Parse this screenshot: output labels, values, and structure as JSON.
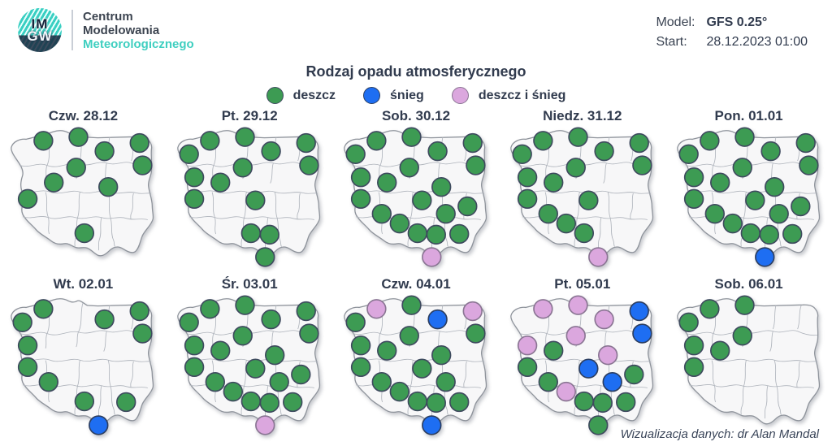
{
  "header": {
    "logo": {
      "im": "IM",
      "gw": "GW",
      "line1": "Centrum",
      "line2": "Modelowania",
      "line3": "Meteorologicznego"
    },
    "model_label": "Model:",
    "model_value": "GFS 0.25°",
    "start_label": "Start:",
    "start_value": "28.12.2023 01:00"
  },
  "footer": "Wizualizacja danych: dr Alan Mandal",
  "colors": {
    "rain": "#3d9b53",
    "snow": "#1e6ef2",
    "rain_snow": "#dba7de",
    "accent_teal": "#3fcfc0",
    "text_navy": "#313b4e"
  },
  "legend": [
    {
      "label": "deszcz",
      "value": "deszcz",
      "color": "#3d9b53",
      "stroke": "#3e4a5e",
      "icon": "rain-dot-icon"
    },
    {
      "label": "śnieg",
      "value": "śnieg",
      "color": "#1e6ef2",
      "stroke": "#2c3e60",
      "icon": "snow-dot-icon"
    },
    {
      "label": "deszcz i śnieg",
      "value": "deszcz i śnieg",
      "color": "#dba7de",
      "stroke": "#8a7593",
      "icon": "rain-snow-dot-icon"
    }
  ],
  "chart_data": {
    "type": "table",
    "title": "Rodzaj opadu atmosferycznego",
    "subtitle": "",
    "legend_entries": [
      "deszcz",
      "śnieg",
      "deszcz i śnieg"
    ],
    "days": [
      "Czw. 28.12",
      "Pt. 29.12",
      "Sob. 30.12",
      "Niedz. 31.12",
      "Pon. 01.01",
      "Wt. 02.01",
      "Śr. 03.01",
      "Czw. 04.01",
      "Pt. 05.01",
      "Sob. 06.01"
    ],
    "stations": {
      "Szczecin": [
        9.5,
        19.5
      ],
      "Koszalin": [
        23.5,
        10.5
      ],
      "Gdańsk": [
        47,
        8
      ],
      "Olsztyn": [
        64.5,
        17.5
      ],
      "Suwałki": [
        88,
        12
      ],
      "Toruń": [
        45.5,
        28.5
      ],
      "Białystok": [
        90,
        27
      ],
      "Gorzów": [
        13,
        35
      ],
      "Poznań": [
        30.5,
        38.5
      ],
      "Warszawa": [
        67,
        41.5
      ],
      "Zielona Góra": [
        13,
        49.5
      ],
      "Łódź": [
        54,
        50.5
      ],
      "Wrocław": [
        27,
        59.5
      ],
      "Kielce": [
        70,
        59.5
      ],
      "Lublin": [
        84.5,
        54.5
      ],
      "Opole": [
        39,
        66
      ],
      "Katowice": [
        51,
        72.5
      ],
      "Kraków": [
        63.5,
        73.5
      ],
      "Rzeszów": [
        79,
        73
      ],
      "Zakopane": [
        60.5,
        88.5
      ]
    },
    "values": {
      "Czw. 28.12": {
        "Koszalin": "deszcz",
        "Gdańsk": "deszcz",
        "Olsztyn": "deszcz",
        "Suwałki": "deszcz",
        "Toruń": "deszcz",
        "Białystok": "deszcz",
        "Poznań": "deszcz",
        "Warszawa": "deszcz",
        "Zielona Góra": "deszcz",
        "Katowice": "deszcz"
      },
      "Pt. 29.12": {
        "Szczecin": "deszcz",
        "Koszalin": "deszcz",
        "Gdańsk": "deszcz",
        "Olsztyn": "deszcz",
        "Suwałki": "deszcz",
        "Toruń": "deszcz",
        "Białystok": "deszcz",
        "Gorzów": "deszcz",
        "Poznań": "deszcz",
        "Zielona Góra": "deszcz",
        "Łódź": "deszcz",
        "Katowice": "deszcz",
        "Kraków": "deszcz",
        "Zakopane": "deszcz"
      },
      "Sob. 30.12": {
        "Szczecin": "deszcz",
        "Koszalin": "deszcz",
        "Gdańsk": "deszcz",
        "Olsztyn": "deszcz",
        "Suwałki": "deszcz",
        "Toruń": "deszcz",
        "Białystok": "deszcz",
        "Gorzów": "deszcz",
        "Poznań": "deszcz",
        "Warszawa": "deszcz",
        "Zielona Góra": "deszcz",
        "Łódź": "deszcz",
        "Wrocław": "deszcz",
        "Kielce": "deszcz",
        "Lublin": "deszcz",
        "Opole": "deszcz",
        "Katowice": "deszcz",
        "Kraków": "deszcz",
        "Rzeszów": "deszcz",
        "Zakopane": "deszcz i śnieg"
      },
      "Niedz. 31.12": {
        "Szczecin": "deszcz",
        "Koszalin": "deszcz",
        "Gdańsk": "deszcz",
        "Olsztyn": "deszcz",
        "Suwałki": "deszcz",
        "Toruń": "deszcz",
        "Białystok": "deszcz",
        "Gorzów": "deszcz",
        "Poznań": "deszcz",
        "Zielona Góra": "deszcz",
        "Łódź": "deszcz",
        "Wrocław": "deszcz",
        "Opole": "deszcz",
        "Katowice": "deszcz",
        "Zakopane": "deszcz i śnieg"
      },
      "Pon. 01.01": {
        "Szczecin": "deszcz",
        "Koszalin": "deszcz",
        "Gdańsk": "deszcz",
        "Olsztyn": "deszcz",
        "Suwałki": "deszcz",
        "Toruń": "deszcz",
        "Białystok": "deszcz",
        "Gorzów": "deszcz",
        "Poznań": "deszcz",
        "Warszawa": "deszcz",
        "Zielona Góra": "deszcz",
        "Łódź": "deszcz",
        "Wrocław": "deszcz",
        "Kielce": "deszcz",
        "Lublin": "deszcz",
        "Opole": "deszcz",
        "Katowice": "deszcz",
        "Kraków": "deszcz",
        "Rzeszów": "deszcz",
        "Zakopane": "śnieg"
      },
      "Wt. 02.01": {
        "Szczecin": "deszcz",
        "Koszalin": "deszcz",
        "Olsztyn": "deszcz",
        "Suwałki": "deszcz",
        "Białystok": "deszcz",
        "Gorzów": "deszcz",
        "Zielona Góra": "deszcz",
        "Wrocław": "deszcz",
        "Katowice": "deszcz",
        "Rzeszów": "deszcz",
        "Zakopane": "śnieg"
      },
      "Śr. 03.01": {
        "Szczecin": "deszcz",
        "Koszalin": "deszcz",
        "Gdańsk": "deszcz",
        "Olsztyn": "deszcz",
        "Suwałki": "deszcz",
        "Toruń": "deszcz",
        "Białystok": "deszcz",
        "Gorzów": "deszcz",
        "Poznań": "deszcz",
        "Warszawa": "deszcz",
        "Zielona Góra": "deszcz",
        "Łódź": "deszcz",
        "Wrocław": "deszcz",
        "Kielce": "deszcz",
        "Lublin": "deszcz",
        "Opole": "deszcz",
        "Katowice": "deszcz",
        "Kraków": "deszcz",
        "Rzeszów": "deszcz",
        "Zakopane": "deszcz i śnieg"
      },
      "Czw. 04.01": {
        "Szczecin": "deszcz",
        "Koszalin": "deszcz i śnieg",
        "Gdańsk": "deszcz",
        "Olsztyn": "śnieg",
        "Suwałki": "deszcz i śnieg",
        "Toruń": "deszcz",
        "Białystok": "deszcz",
        "Gorzów": "deszcz",
        "Poznań": "deszcz",
        "Warszawa": "deszcz",
        "Zielona Góra": "deszcz",
        "Łódź": "deszcz",
        "Wrocław": "deszcz",
        "Kielce": "deszcz",
        "Opole": "deszcz",
        "Katowice": "deszcz",
        "Kraków": "deszcz",
        "Rzeszów": "deszcz",
        "Zakopane": "śnieg"
      },
      "Pt. 05.01": {
        "Koszalin": "deszcz i śnieg",
        "Gdańsk": "deszcz i śnieg",
        "Olsztyn": "deszcz i śnieg",
        "Suwałki": "śnieg",
        "Toruń": "deszcz i śnieg",
        "Białystok": "śnieg",
        "Gorzów": "deszcz i śnieg",
        "Poznań": "deszcz",
        "Warszawa": "deszcz i śnieg",
        "Zielona Góra": "deszcz",
        "Łódź": "śnieg",
        "Wrocław": "deszcz",
        "Kielce": "śnieg",
        "Lublin": "deszcz",
        "Opole": "deszcz i śnieg",
        "Katowice": "deszcz",
        "Kraków": "deszcz",
        "Rzeszów": "deszcz",
        "Zakopane": "deszcz"
      },
      "Sob. 06.01": {
        "Szczecin": "deszcz",
        "Koszalin": "deszcz",
        "Gdańsk": "deszcz",
        "Toruń": "deszcz",
        "Gorzów": "deszcz",
        "Poznań": "deszcz",
        "Zielona Góra": "deszcz"
      }
    }
  }
}
